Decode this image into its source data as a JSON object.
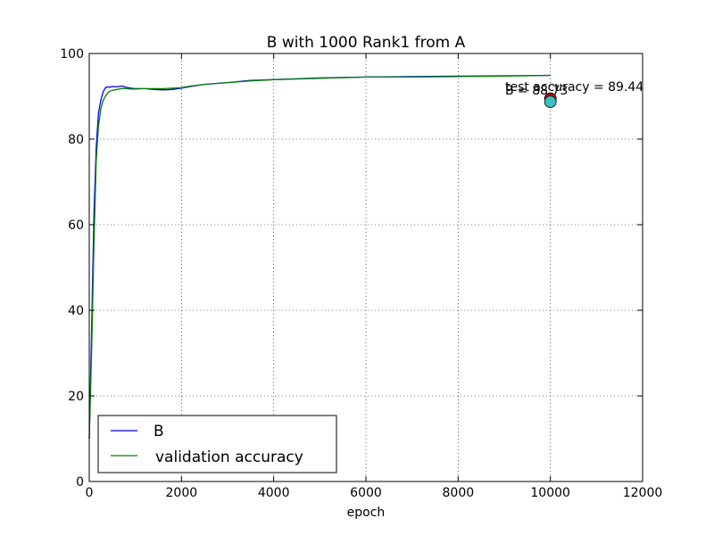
{
  "chart_data": {
    "type": "line",
    "title": "B with 1000 Rank1 from A",
    "xlabel": "epoch",
    "ylabel": "",
    "xlim": [
      0,
      12000
    ],
    "ylim": [
      0,
      100
    ],
    "xticks": [
      0,
      2000,
      4000,
      6000,
      8000,
      10000,
      12000
    ],
    "yticks": [
      0,
      20,
      40,
      60,
      80,
      100
    ],
    "xtick_labels": [
      "0",
      "2000",
      "4000",
      "6000",
      "8000",
      "10000",
      "12000"
    ],
    "ytick_labels": [
      "0",
      "20",
      "40",
      "60",
      "80",
      "100"
    ],
    "grid": true,
    "legend_position": "lower-left",
    "series": [
      {
        "name": "B",
        "color": "#0000ff",
        "x": [
          0,
          50,
          100,
          150,
          200,
          250,
          300,
          350,
          400,
          450,
          500,
          600,
          700,
          800,
          900,
          1000,
          1200,
          1400,
          1600,
          1800,
          2000,
          2200,
          2500,
          3000,
          3500,
          4000,
          5000,
          6000,
          7000,
          8000,
          9000,
          10000
        ],
        "y": [
          10,
          35,
          62,
          78,
          86,
          89,
          91,
          92,
          92.2,
          92.1,
          92.3,
          92.2,
          92.4,
          92.1,
          91.9,
          91.8,
          91.8,
          91.6,
          91.5,
          91.6,
          91.9,
          92.3,
          92.8,
          93.2,
          93.7,
          93.9,
          94.3,
          94.5,
          94.6,
          94.7,
          94.8,
          94.9
        ]
      },
      {
        "name": "validation accuracy",
        "color": "#008000",
        "x": [
          0,
          50,
          100,
          150,
          200,
          250,
          300,
          350,
          400,
          450,
          500,
          600,
          700,
          800,
          900,
          1000,
          1200,
          1400,
          1600,
          1800,
          2000,
          2200,
          2500,
          3000,
          3500,
          4000,
          5000,
          6000,
          7000,
          8000,
          9000,
          10000
        ],
        "y": [
          10,
          30,
          55,
          75,
          83,
          87,
          89,
          90,
          90.8,
          91.2,
          91.4,
          91.6,
          91.8,
          91.8,
          91.7,
          91.7,
          91.8,
          91.8,
          91.8,
          91.9,
          92.0,
          92.4,
          92.8,
          93.2,
          93.6,
          93.9,
          94.2,
          94.5,
          94.5,
          94.6,
          94.7,
          94.9
        ]
      }
    ],
    "markers": [
      {
        "x": 10000,
        "y": 89.44,
        "color": "#cc0000",
        "label": "test accuracy = 89.44"
      },
      {
        "x": 10000,
        "y": 88.73,
        "color": "#3bbfbf",
        "label": "B = 88.73"
      }
    ]
  }
}
